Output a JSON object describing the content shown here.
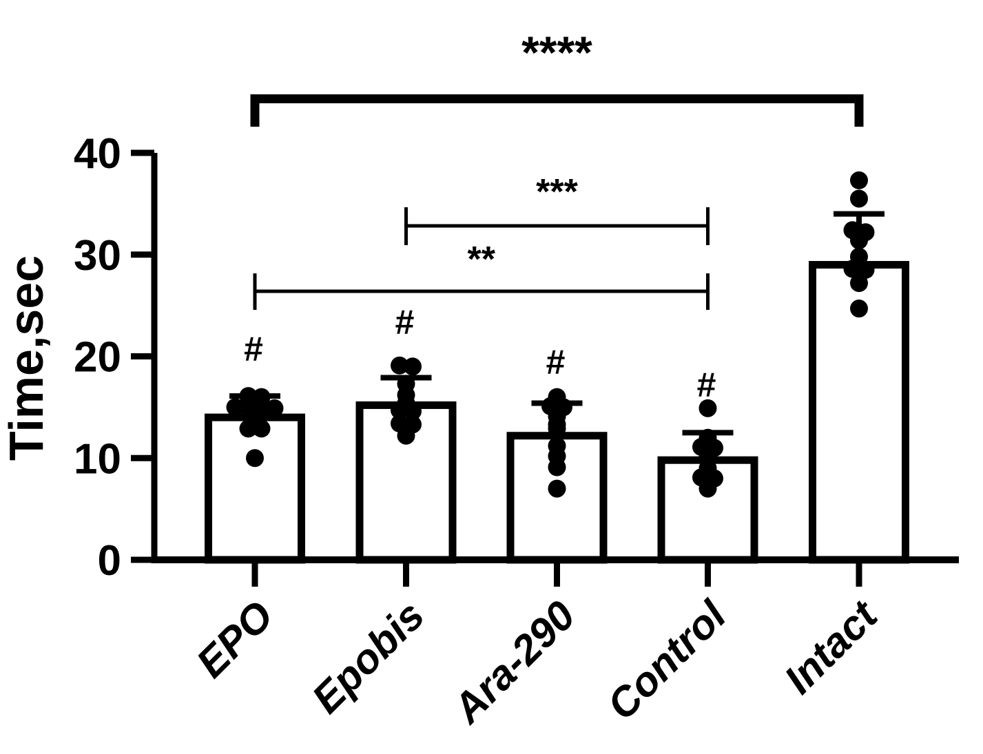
{
  "figure": {
    "background": "#ffffff",
    "ink_color": "#000000"
  },
  "chart_data": {
    "type": "bar",
    "title": "",
    "xlabel": "",
    "ylabel": "Time,sec",
    "ylim": [
      0,
      40
    ],
    "yticks": [
      0,
      10,
      20,
      30,
      40
    ],
    "grid": "off",
    "legend": "none",
    "bar_fill": "#ffffff",
    "bar_edge": "#000000",
    "point_color": "#000000",
    "error_bars": "upper SD whisker with cap",
    "categories": [
      "EPO",
      "Epobis",
      "Ara-290",
      "Control",
      "Intact"
    ],
    "series": [
      {
        "name": "EPO",
        "mean": 14.0,
        "error_top": 16.1,
        "points": [
          16.1,
          16.0,
          15.0,
          15.0,
          15.0,
          14.9,
          13.9,
          12.9,
          12.9,
          10.0
        ],
        "annotation": "#"
      },
      {
        "name": "Epobis",
        "mean": 15.2,
        "error_top": 17.9,
        "points": [
          19.1,
          19.0,
          17.3,
          16.2,
          15.4,
          14.7,
          14.6,
          13.4,
          13.3,
          12.2
        ],
        "annotation": "#"
      },
      {
        "name": "Ara-290",
        "mean": 12.2,
        "error_top": 15.4,
        "points": [
          16.0,
          15.1,
          15.0,
          14.1,
          13.3,
          12.9,
          11.2,
          10.2,
          9.1,
          7.0
        ],
        "annotation": "#"
      },
      {
        "name": "Control",
        "mean": 9.8,
        "error_top": 12.5,
        "points": [
          14.9,
          12.0,
          11.1,
          11.0,
          10.2,
          9.0,
          8.1,
          8.0,
          7.0
        ],
        "annotation": "#"
      },
      {
        "name": "Intact",
        "mean": 29.0,
        "error_top": 34.0,
        "points": [
          37.3,
          35.5,
          32.4,
          32.2,
          31.4,
          29.8,
          28.6,
          28.5,
          27.2,
          24.7
        ],
        "annotation": ""
      }
    ],
    "significance_brackets": [
      {
        "label": "****",
        "from": "EPO",
        "to": "Intact",
        "style": "thick"
      },
      {
        "label": "***",
        "from": "Epobis",
        "to": "Control",
        "style": "thin"
      },
      {
        "label": "**",
        "from": "EPO",
        "to": "Control",
        "style": "thin"
      }
    ],
    "hash_annotation_symbol": "#",
    "hash_annotated_groups": [
      "EPO",
      "Epobis",
      "Ara-290",
      "Control"
    ]
  }
}
